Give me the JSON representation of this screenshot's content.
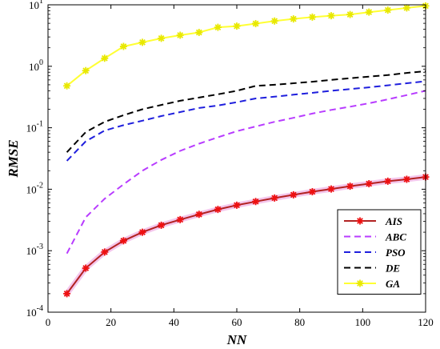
{
  "chart_data": {
    "type": "line",
    "xlabel": "NN",
    "ylabel": "RMSE",
    "xlim": [
      0,
      120
    ],
    "ylim": [
      0.0001,
      10
    ],
    "yscale": "log",
    "grid": false,
    "legend": "bottom-right",
    "x_ticks": [
      "0",
      "20",
      "40",
      "60",
      "80",
      "100",
      "120"
    ],
    "y_ticks": [
      {
        "base": "10",
        "exp": "-4"
      },
      {
        "base": "10",
        "exp": "-3"
      },
      {
        "base": "10",
        "exp": "-2"
      },
      {
        "base": "10",
        "exp": "-1"
      },
      {
        "base": "10",
        "exp": "0"
      },
      {
        "base": "10",
        "exp": "1"
      }
    ],
    "series": [
      {
        "name": "AIS",
        "color": "#b22222",
        "style": "solid",
        "marker": "star",
        "x": [
          6,
          12,
          18,
          24,
          30,
          36,
          42,
          48,
          54,
          60,
          66,
          72,
          78,
          84,
          90,
          96,
          102,
          108,
          114,
          120
        ],
        "y": [
          0.0002,
          0.00052,
          0.00095,
          0.00145,
          0.002,
          0.0026,
          0.0032,
          0.0039,
          0.0047,
          0.0055,
          0.0063,
          0.0072,
          0.0081,
          0.0091,
          0.0101,
          0.0112,
          0.0123,
          0.0135,
          0.0145,
          0.0158
        ]
      },
      {
        "name": "ABC",
        "color": "#b83cff",
        "style": "dashed",
        "marker": "none",
        "x": [
          6,
          12,
          18,
          24,
          30,
          36,
          42,
          48,
          54,
          60,
          66,
          72,
          78,
          84,
          90,
          96,
          102,
          108,
          114,
          120
        ],
        "y": [
          0.0009,
          0.0035,
          0.007,
          0.012,
          0.02,
          0.03,
          0.042,
          0.055,
          0.07,
          0.088,
          0.105,
          0.125,
          0.145,
          0.17,
          0.195,
          0.22,
          0.25,
          0.29,
          0.34,
          0.4
        ]
      },
      {
        "name": "PSO",
        "color": "#1f1fdd",
        "style": "dashed",
        "marker": "none",
        "x": [
          6,
          12,
          18,
          24,
          30,
          36,
          42,
          48,
          54,
          60,
          66,
          72,
          78,
          84,
          90,
          96,
          102,
          108,
          114,
          120
        ],
        "y": [
          0.029,
          0.06,
          0.09,
          0.11,
          0.13,
          0.155,
          0.18,
          0.21,
          0.23,
          0.26,
          0.3,
          0.32,
          0.345,
          0.37,
          0.4,
          0.425,
          0.455,
          0.49,
          0.53,
          0.57
        ]
      },
      {
        "name": "DE",
        "color": "#000000",
        "style": "dashed",
        "marker": "none",
        "x": [
          6,
          12,
          18,
          24,
          30,
          36,
          42,
          48,
          54,
          60,
          66,
          72,
          78,
          84,
          90,
          96,
          102,
          108,
          114,
          120
        ],
        "y": [
          0.04,
          0.085,
          0.125,
          0.16,
          0.2,
          0.235,
          0.275,
          0.31,
          0.35,
          0.4,
          0.48,
          0.5,
          0.53,
          0.56,
          0.6,
          0.64,
          0.68,
          0.72,
          0.78,
          0.83
        ]
      },
      {
        "name": "GA",
        "color": "#ffff33",
        "style": "solid",
        "marker": "star",
        "x": [
          6,
          12,
          18,
          24,
          30,
          36,
          42,
          48,
          54,
          60,
          66,
          72,
          78,
          84,
          90,
          96,
          102,
          108,
          114,
          120
        ],
        "y": [
          0.48,
          0.85,
          1.35,
          2.1,
          2.45,
          2.85,
          3.2,
          3.55,
          4.3,
          4.5,
          4.95,
          5.45,
          5.9,
          6.3,
          6.65,
          6.95,
          7.6,
          8.2,
          8.9,
          9.6
        ]
      }
    ]
  }
}
